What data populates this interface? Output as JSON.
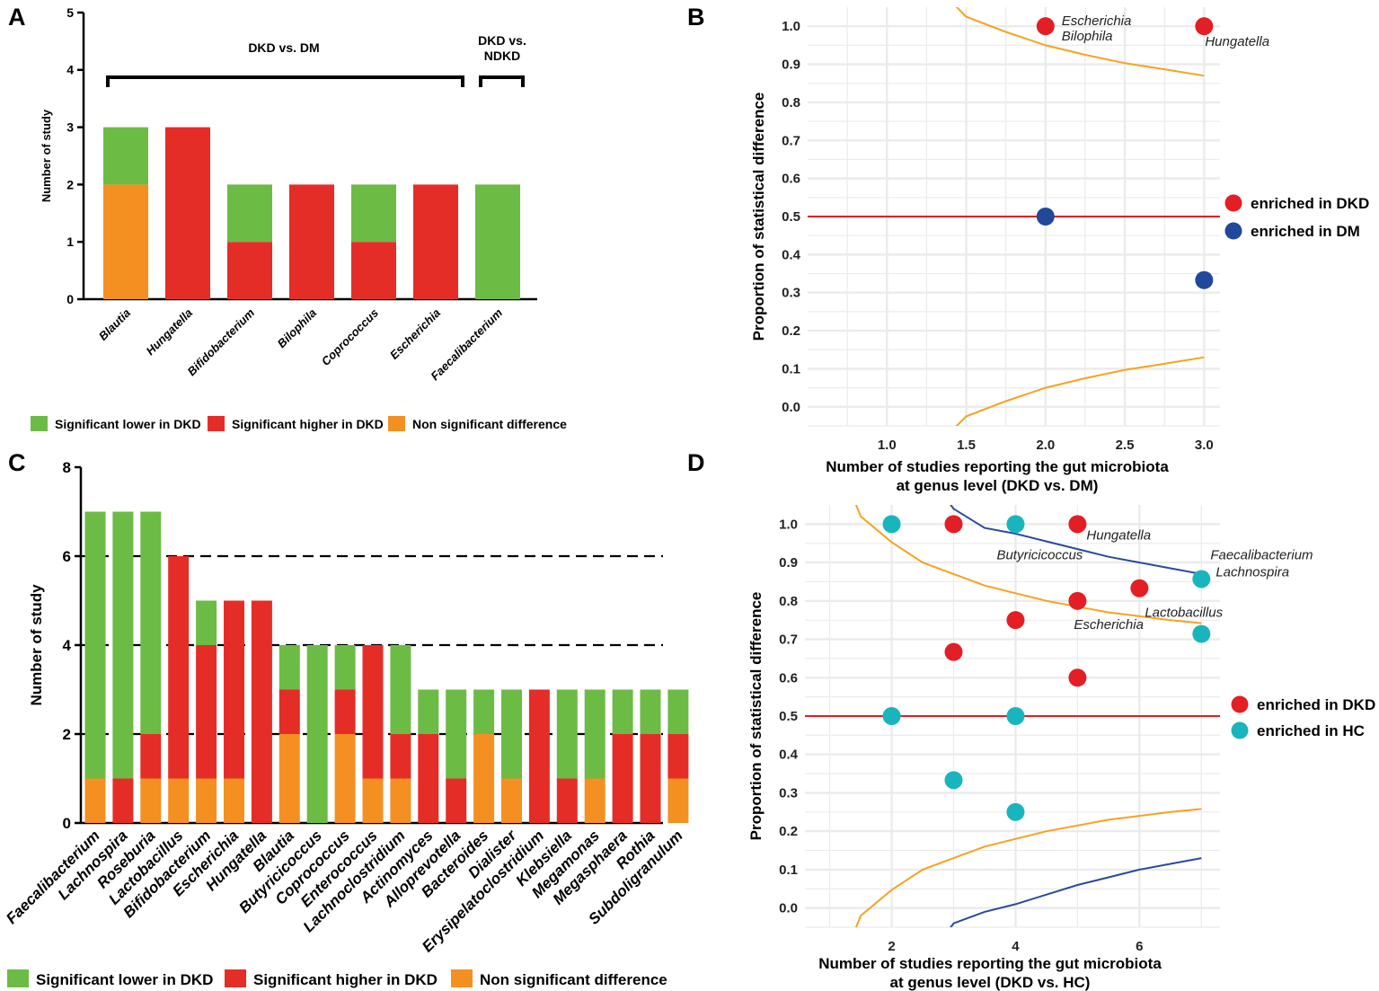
{
  "colors": {
    "lower": "#6cbb45",
    "higher": "#e52d27",
    "nonsig": "#f39021",
    "enriched_dkd": "#e31e24",
    "enriched_dm": "#22489b",
    "enriched_hc": "#19b5bd",
    "funnel_orange": "#f6a21e",
    "funnel_blue": "#2b4a9a",
    "grid": "#ebebeb"
  },
  "chart_data": [
    {
      "panel": "A",
      "type": "bar",
      "stacked": true,
      "ylabel": "Number of study",
      "ylim": [
        0,
        5
      ],
      "yticks": [
        "0",
        "1",
        "2",
        "3",
        "4",
        "5"
      ],
      "categories": [
        "Blautia",
        "Hungatella",
        "Bifidobacterium",
        "Bilophila",
        "Coprococcus",
        "Escherichia",
        "Faecalibacterium"
      ],
      "series": [
        {
          "name": "Non significant difference",
          "key": "nonsig",
          "values": [
            2,
            0,
            0,
            0,
            0,
            0,
            0
          ]
        },
        {
          "name": "Significant higher in DKD",
          "key": "higher",
          "values": [
            0,
            3,
            1,
            2,
            1,
            2,
            0
          ]
        },
        {
          "name": "Significant lower in DKD",
          "key": "lower",
          "values": [
            1,
            0,
            1,
            0,
            1,
            0,
            2
          ]
        }
      ],
      "groups": [
        {
          "label": "DKD vs. DM",
          "from": 0,
          "to": 5
        },
        {
          "label": "DKD vs. NDKD",
          "line1": "DKD vs.",
          "line2": "NDKD",
          "from": 6,
          "to": 6
        }
      ],
      "legend": [
        {
          "label": "Significant lower in DKD",
          "key": "lower"
        },
        {
          "label": "Significant higher in DKD",
          "key": "higher"
        },
        {
          "label": "Non significant difference",
          "key": "nonsig"
        }
      ]
    },
    {
      "panel": "B",
      "type": "scatter",
      "xlabel": "Number of  studies reporting the gut microbiota",
      "xlabel2": "at genus level (DKD vs. DM)",
      "ylabel": "Proportion of statistical difference",
      "xlim": [
        0.5,
        3.1
      ],
      "ylim": [
        -0.05,
        1.05
      ],
      "xticks": [
        1.0,
        1.5,
        2.0,
        2.5,
        3.0
      ],
      "xtick_labels": [
        "1.0",
        "1.5",
        "2.0",
        "2.5",
        "3.0"
      ],
      "yticks": [
        0,
        0.1,
        0.2,
        0.3,
        0.4,
        0.5,
        0.6,
        0.7,
        0.8,
        0.9,
        1.0
      ],
      "ytick_labels": [
        "0.0",
        "0.1",
        "0.2",
        "0.3",
        "0.4",
        "0.5",
        "0.6",
        "0.7",
        "0.8",
        "0.9",
        "1.0"
      ],
      "reference_line": 0.5,
      "points": [
        {
          "x": 2,
          "y": 1.0,
          "group": "enriched in DKD"
        },
        {
          "x": 3,
          "y": 1.0,
          "group": "enriched in DKD"
        },
        {
          "x": 2,
          "y": 0.5,
          "group": "enriched in DM"
        },
        {
          "x": 3,
          "y": 0.333,
          "group": "enriched in DM"
        }
      ],
      "annotations": [
        {
          "text": "Escherichia",
          "x": 2,
          "y": 1.0,
          "pos": "right-up"
        },
        {
          "text": "Bilophila",
          "x": 2,
          "y": 1.0,
          "pos": "right-down"
        },
        {
          "text": "Hungatella",
          "x": 3,
          "y": 1.0,
          "pos": "below"
        }
      ],
      "funnel_lines": [
        {
          "color": "orange",
          "x": [
            1.25,
            1.5,
            1.75,
            2.0,
            2.25,
            2.5,
            2.75,
            3.0
          ],
          "y": [
            1.13,
            1.025,
            0.985,
            0.95,
            0.925,
            0.903,
            0.887,
            0.87
          ]
        },
        {
          "color": "orange",
          "x": [
            1.25,
            1.5,
            1.75,
            2.0,
            2.25,
            2.5,
            2.75,
            3.0
          ],
          "y": [
            -0.13,
            -0.025,
            0.015,
            0.05,
            0.075,
            0.097,
            0.113,
            0.13
          ]
        }
      ],
      "legend": [
        {
          "label": "enriched in DKD",
          "key": "enriched_dkd"
        },
        {
          "label": "enriched in DM",
          "key": "enriched_dm"
        }
      ]
    },
    {
      "panel": "C",
      "type": "bar",
      "stacked": true,
      "ylabel": "Number of study",
      "ylim": [
        0,
        8
      ],
      "yticks": [
        "0",
        "2",
        "4",
        "6",
        "8"
      ],
      "dashed_lines": [
        2,
        4,
        6
      ],
      "categories": [
        "Faecalibacterium",
        "Lachnospira",
        "Roseburia",
        "Lactobacillus",
        "Bifidobacterium",
        "Escherichia",
        "Hungatella",
        "Blautia",
        "Butyricicoccus",
        "Coprococcus",
        "Enterococcus",
        "Lachnoclostridium",
        "Actinomyces",
        "Alloprevotella",
        "Bacteroides",
        "Dialister",
        "Erysipelatoclostridium",
        "Klebsiella",
        "Megamonas",
        "Megasphaera",
        "Rothia",
        "Subdoligranulum"
      ],
      "series": [
        {
          "name": "Non significant difference",
          "key": "nonsig",
          "values": [
            1,
            0,
            1,
            1,
            1,
            1,
            0,
            2,
            0,
            2,
            1,
            1,
            0,
            0,
            2,
            1,
            0,
            0,
            1,
            0,
            0,
            1
          ]
        },
        {
          "name": "Significant higher in DKD",
          "key": "higher",
          "values": [
            0,
            1,
            1,
            5,
            3,
            4,
            5,
            1,
            0,
            1,
            3,
            1,
            2,
            1,
            0,
            0,
            3,
            1,
            0,
            2,
            2,
            1
          ]
        },
        {
          "name": "Significant lower in DKD",
          "key": "lower",
          "values": [
            6,
            6,
            5,
            0,
            1,
            0,
            0,
            1,
            4,
            1,
            0,
            2,
            1,
            2,
            1,
            2,
            0,
            2,
            2,
            1,
            1,
            1
          ]
        }
      ],
      "legend": [
        {
          "label": "Significant lower in DKD",
          "key": "lower"
        },
        {
          "label": "Significant higher in DKD",
          "key": "higher"
        },
        {
          "label": "Non significant difference",
          "key": "nonsig"
        }
      ]
    },
    {
      "panel": "D",
      "type": "scatter",
      "xlabel": "Number of  studies reporting the gut microbiota",
      "xlabel2": "at genus level (DKD vs. HC)",
      "ylabel": "Proportion of statistical difference",
      "xlim": [
        0.6,
        7.3
      ],
      "ylim": [
        -0.05,
        1.05
      ],
      "xticks": [
        2,
        4,
        6
      ],
      "xtick_labels": [
        "2",
        "4",
        "6"
      ],
      "yticks": [
        0,
        0.1,
        0.2,
        0.3,
        0.4,
        0.5,
        0.6,
        0.7,
        0.8,
        0.9,
        1.0
      ],
      "ytick_labels": [
        "0.0",
        "0.1",
        "0.2",
        "0.3",
        "0.4",
        "0.5",
        "0.6",
        "0.7",
        "0.8",
        "0.9",
        "1.0"
      ],
      "reference_line": 0.5,
      "points": [
        {
          "x": 3,
          "y": 1.0,
          "group": "enriched in DKD"
        },
        {
          "x": 5,
          "y": 1.0,
          "group": "enriched in DKD"
        },
        {
          "x": 6,
          "y": 0.833,
          "group": "enriched in DKD"
        },
        {
          "x": 5,
          "y": 0.8,
          "group": "enriched in DKD"
        },
        {
          "x": 4,
          "y": 0.75,
          "group": "enriched in DKD"
        },
        {
          "x": 3,
          "y": 0.667,
          "group": "enriched in DKD"
        },
        {
          "x": 5,
          "y": 0.6,
          "group": "enriched in DKD"
        },
        {
          "x": 2,
          "y": 1.0,
          "group": "enriched in HC"
        },
        {
          "x": 4,
          "y": 1.0,
          "group": "enriched in HC"
        },
        {
          "x": 7,
          "y": 0.857,
          "group": "enriched in HC"
        },
        {
          "x": 7,
          "y": 0.714,
          "group": "enriched in HC"
        },
        {
          "x": 2,
          "y": 0.5,
          "group": "enriched in HC"
        },
        {
          "x": 4,
          "y": 0.5,
          "group": "enriched in HC"
        },
        {
          "x": 3,
          "y": 0.333,
          "group": "enriched in HC"
        },
        {
          "x": 4,
          "y": 0.25,
          "group": "enriched in HC"
        }
      ],
      "annotations": [
        {
          "text": "Hungatella",
          "x": 5,
          "y": 1.0,
          "pos": "below-right"
        },
        {
          "text": "Butyricicoccus",
          "x": 4,
          "y": 1.0,
          "pos": "below"
        },
        {
          "text": "Faecalibacterium",
          "x": 7,
          "y": 0.857,
          "pos": "right-up"
        },
        {
          "text": "Lachnospira",
          "x": 7,
          "y": 0.857,
          "pos": "right-down"
        },
        {
          "text": "Lactobacillus",
          "x": 6,
          "y": 0.833,
          "pos": "below-right"
        },
        {
          "text": "Escherichia",
          "x": 5,
          "y": 0.8,
          "pos": "below-far"
        }
      ],
      "funnel_lines": [
        {
          "color": "orange",
          "x": [
            1.3,
            1.5,
            2,
            2.5,
            3,
            3.5,
            4,
            4.5,
            5,
            5.5,
            6,
            6.5,
            7
          ],
          "y": [
            1.1,
            1.02,
            0.953,
            0.9,
            0.87,
            0.84,
            0.82,
            0.8,
            0.785,
            0.77,
            0.76,
            0.75,
            0.742
          ]
        },
        {
          "color": "orange",
          "x": [
            1.3,
            1.5,
            2,
            2.5,
            3,
            3.5,
            4,
            4.5,
            5,
            5.5,
            6,
            6.5,
            7
          ],
          "y": [
            -0.1,
            -0.02,
            0.047,
            0.1,
            0.13,
            0.16,
            0.18,
            0.2,
            0.215,
            0.23,
            0.24,
            0.25,
            0.258
          ]
        },
        {
          "color": "blue",
          "x": [
            2.5,
            3,
            3.5,
            4,
            4.5,
            5,
            5.5,
            6,
            6.5,
            7
          ],
          "y": [
            1.15,
            1.04,
            0.99,
            0.975,
            0.955,
            0.935,
            0.915,
            0.9,
            0.885,
            0.87
          ]
        },
        {
          "color": "blue",
          "x": [
            2.5,
            3,
            3.5,
            4,
            4.5,
            5,
            5.5,
            6,
            6.5,
            7
          ],
          "y": [
            -0.15,
            -0.04,
            -0.01,
            0.01,
            0.035,
            0.06,
            0.08,
            0.1,
            0.115,
            0.13
          ]
        }
      ],
      "legend": [
        {
          "label": "enriched in DKD",
          "key": "enriched_dkd"
        },
        {
          "label": "enriched in HC",
          "key": "enriched_hc"
        }
      ]
    }
  ],
  "panel_labels": [
    "A",
    "B",
    "C",
    "D"
  ]
}
